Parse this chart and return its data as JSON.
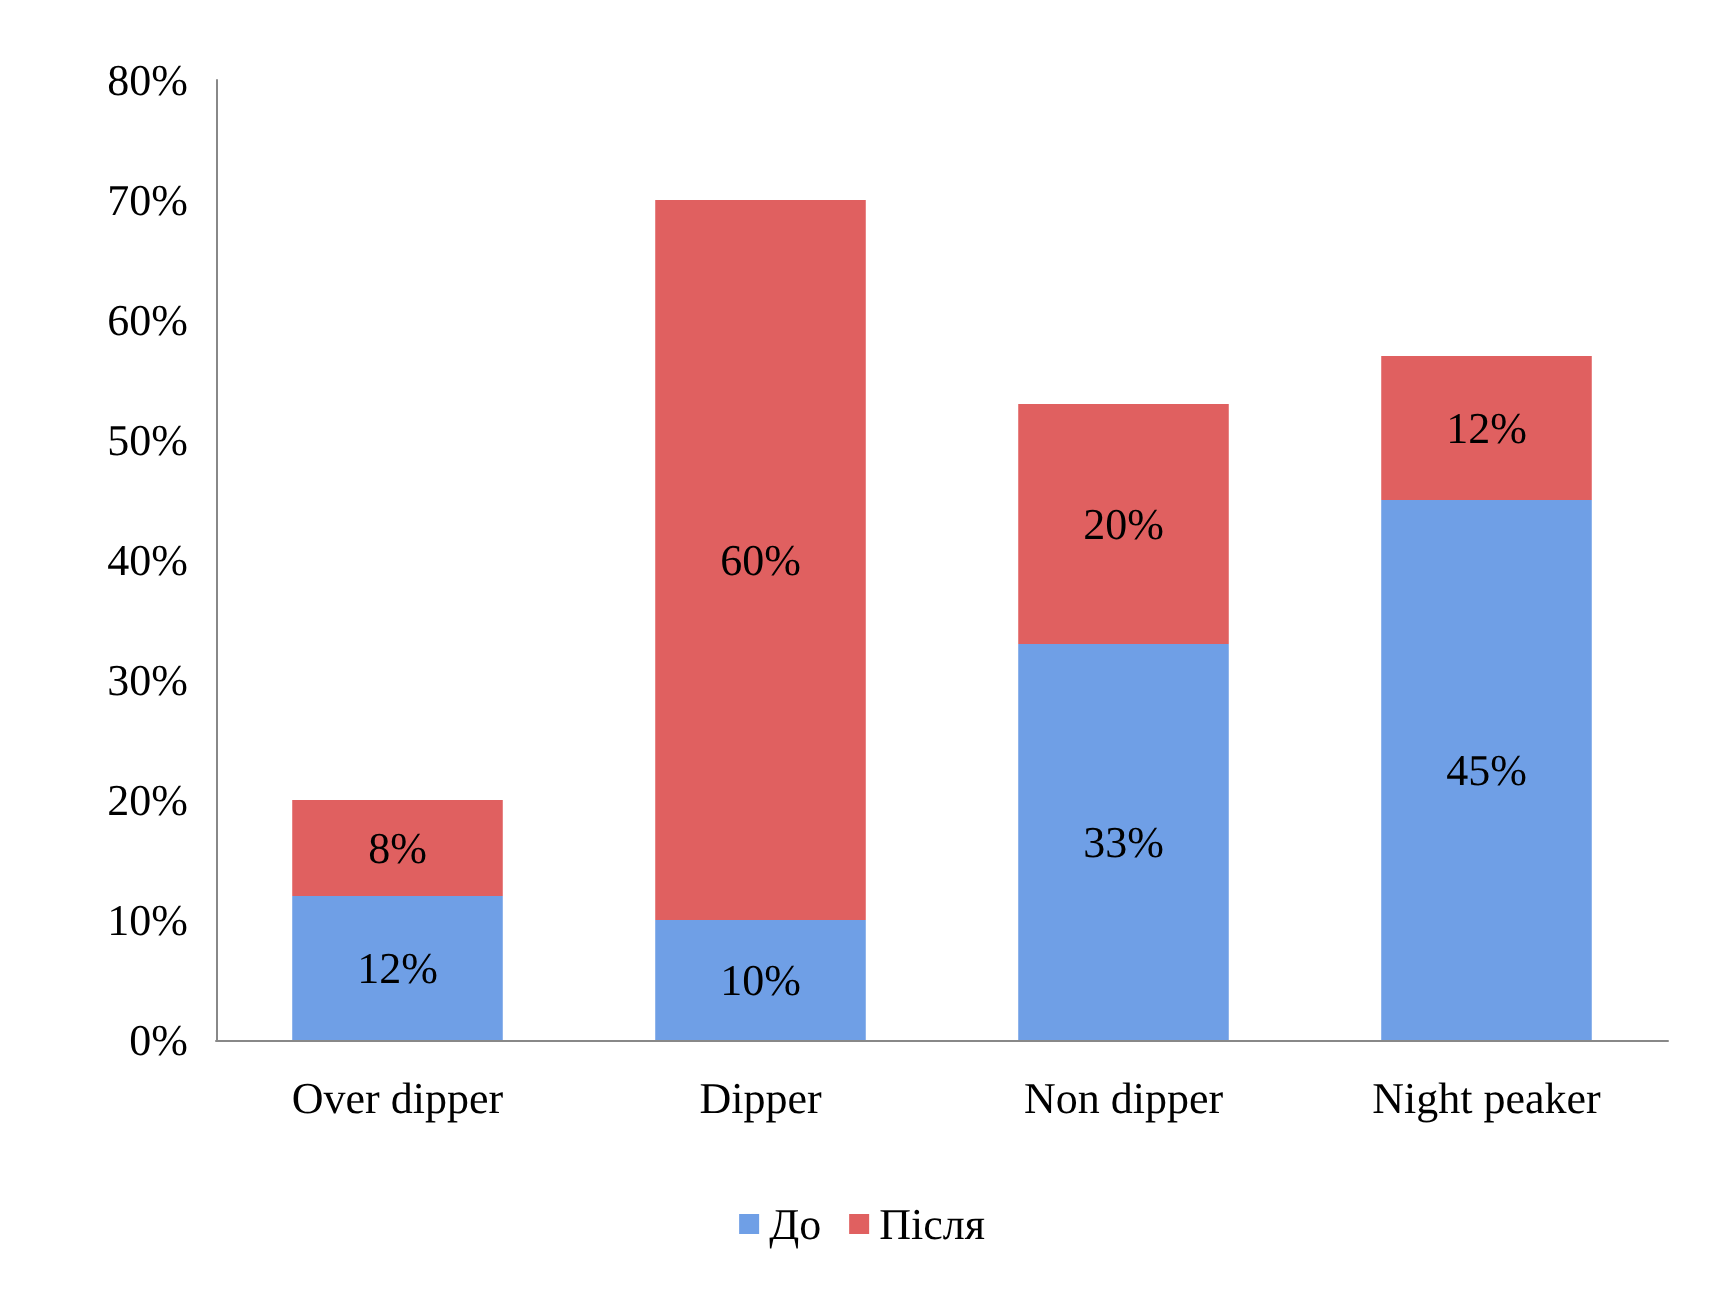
{
  "chart_data": {
    "type": "bar",
    "stacked": true,
    "categories": [
      "Over dipper",
      "Dipper",
      "Non dipper",
      "Night peaker"
    ],
    "series": [
      {
        "name": "До",
        "color": "#6f9fe6",
        "values": [
          12,
          10,
          33,
          45
        ],
        "value_labels": [
          "12%",
          "10%",
          "33%",
          "45%"
        ]
      },
      {
        "name": "Після",
        "color": "#e06060",
        "values": [
          8,
          60,
          20,
          12
        ],
        "value_labels": [
          "8%",
          "60%",
          "20%",
          "12%"
        ]
      }
    ],
    "ylim": [
      0,
      80
    ],
    "yticks": [
      {
        "value": 0,
        "label": "0%"
      },
      {
        "value": 10,
        "label": "10%"
      },
      {
        "value": 20,
        "label": "20%"
      },
      {
        "value": 30,
        "label": "30%"
      },
      {
        "value": 40,
        "label": "40%"
      },
      {
        "value": 50,
        "label": "50%"
      },
      {
        "value": 60,
        "label": "60%"
      },
      {
        "value": 70,
        "label": "70%"
      },
      {
        "value": 80,
        "label": "80%"
      }
    ],
    "grid": false,
    "legend": "bottom"
  }
}
